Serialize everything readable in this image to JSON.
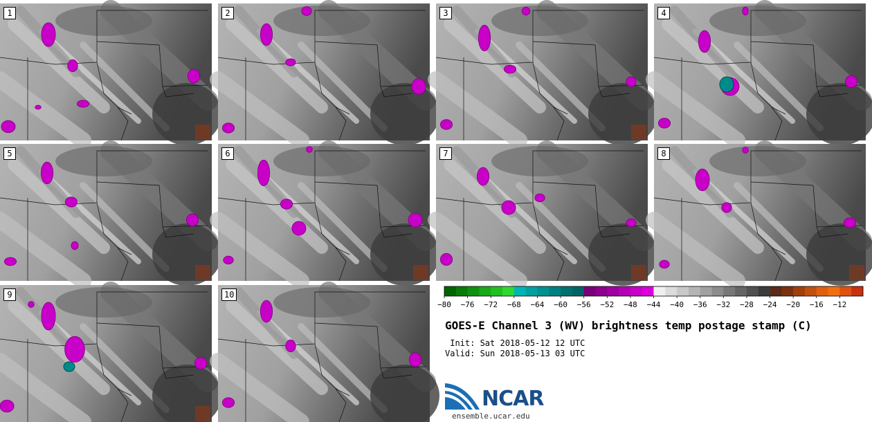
{
  "panels": [
    {
      "label": "1"
    },
    {
      "label": "2"
    },
    {
      "label": "3"
    },
    {
      "label": "4"
    },
    {
      "label": "5"
    },
    {
      "label": "6"
    },
    {
      "label": "7"
    },
    {
      "label": "8"
    },
    {
      "label": "9"
    },
    {
      "label": "10"
    }
  ],
  "colorbar": {
    "ticks": [
      "−80",
      "−76",
      "−72",
      "−68",
      "−64",
      "−60",
      "−56",
      "−52",
      "−48",
      "−44",
      "−40",
      "−36",
      "−32",
      "−28",
      "−24",
      "−20",
      "−16",
      "−12"
    ],
    "colors": [
      "#006400",
      "#0a7a0a",
      "#109010",
      "#18a818",
      "#20c020",
      "#30d830",
      "#00b4b4",
      "#00a0a0",
      "#009090",
      "#008080",
      "#007070",
      "#006464",
      "#780078",
      "#8c008c",
      "#a000a0",
      "#b400b4",
      "#c800c8",
      "#dc00dc",
      "#f0f0f0",
      "#dcdcdc",
      "#c8c8c8",
      "#b4b4b4",
      "#a0a0a0",
      "#8c8c8c",
      "#787878",
      "#646464",
      "#505050",
      "#3c3c3c",
      "#5a2a1a",
      "#7a3010",
      "#a0400a",
      "#c05010",
      "#e06010",
      "#f07010",
      "#e05010",
      "#c83010"
    ]
  },
  "title": "GOES-E Channel 3 (WV) brightness temp postage stamp (C)",
  "init": " Init: Sat 2018-05-12 12 UTC",
  "valid": "Valid: Sun 2018-05-13 03 UTC",
  "logo": {
    "text": "NCAR",
    "site": "ensemble.ucar.edu"
  }
}
